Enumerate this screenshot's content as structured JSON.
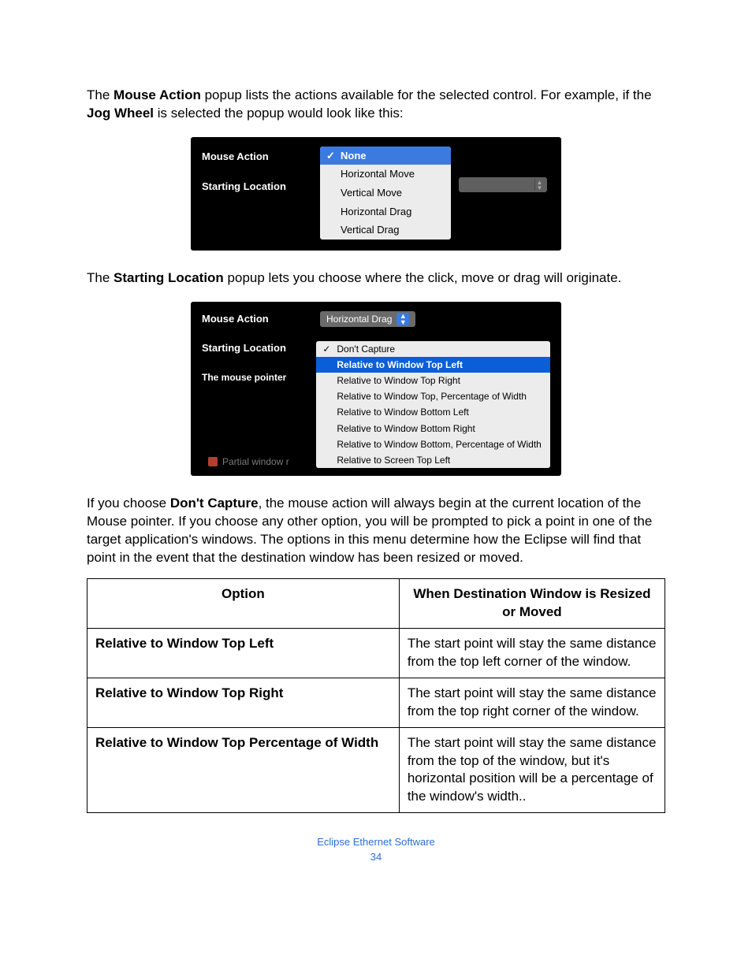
{
  "para1": {
    "pre": "The ",
    "b1": "Mouse Action",
    "mid": " popup lists the actions available for the selected control. For example, if the ",
    "b2": "Jog Wheel",
    "post": " is selected the popup would look like this:"
  },
  "ss1": {
    "label_mouse_action": "Mouse Action",
    "label_starting_location": "Starting Location",
    "menu": {
      "selected": "None",
      "items": [
        "Horizontal Move",
        "Vertical Move",
        "Horizontal Drag",
        "Vertical Drag"
      ]
    }
  },
  "para2": {
    "pre": "The ",
    "b1": "Starting Location",
    "post": " popup lets you choose where the click, move or drag will originate."
  },
  "ss2": {
    "label_mouse_action": "Mouse Action",
    "mouse_action_value": "Horizontal Drag",
    "label_starting_location": "Starting Location",
    "label_mouse_pointer": "The mouse pointer",
    "menu": {
      "checked": "Don't Capture",
      "highlighted": "Relative to Window Top Left",
      "rest": [
        "Relative to Window Top Right",
        "Relative to Window Top, Percentage of Width",
        "Relative to Window Bottom Left",
        "Relative to Window Bottom Right",
        "Relative to Window Bottom, Percentage of Width",
        "Relative to Screen Top Left"
      ]
    },
    "partial_label": "Partial window r"
  },
  "para3": {
    "pre": "If you choose ",
    "b1": "Don't Capture",
    "post": ", the mouse action will always begin at the current location of the Mouse pointer. If you choose any other option, you will be prompted to pick a point in one of the target application's windows. The options in this menu determine how the Eclipse will find that point in the event that the destination window has been resized or moved."
  },
  "table": {
    "headers": {
      "c1": "Option",
      "c2": "When Destination Window is Resized or Moved"
    },
    "rows": [
      {
        "opt": "Relative to Window Top Left",
        "desc": "The start point will stay the same distance from the top left corner of the window."
      },
      {
        "opt": "Relative to Window Top Right",
        "desc": "The start point will stay the same distance from the top right corner of the window."
      },
      {
        "opt": "Relative to Window Top Percentage of Width",
        "desc": "The start point will stay the same distance from the top of the window, but it's horizontal position will be a percentage of the window's width.."
      }
    ]
  },
  "footer": {
    "title": "Eclipse Ethernet Software",
    "page": "34"
  }
}
